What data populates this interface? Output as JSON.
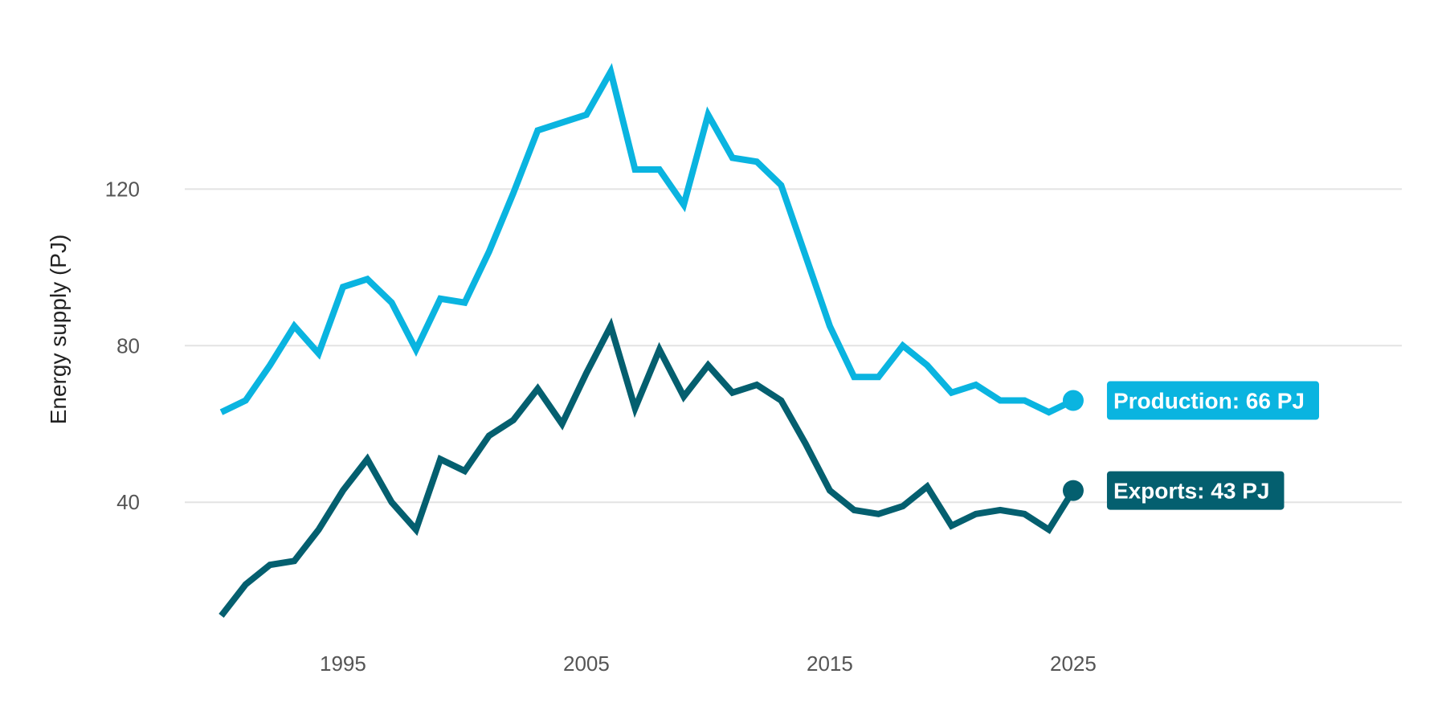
{
  "chart_data": {
    "type": "line",
    "title": "",
    "xlabel": "",
    "ylabel": "Energy supply (PJ)",
    "xlim": [
      1988.5,
      2038.5
    ],
    "ylim": [
      7,
      156
    ],
    "x_ticks": [
      1995,
      2005,
      2015,
      2025
    ],
    "y_ticks": [
      40,
      80,
      120
    ],
    "grid": "horizontal",
    "legend": "end-of-line labels",
    "x": [
      1990,
      1991,
      1992,
      1993,
      1994,
      1995,
      1996,
      1997,
      1998,
      1999,
      2000,
      2001,
      2002,
      2003,
      2004,
      2005,
      2006,
      2007,
      2008,
      2009,
      2010,
      2011,
      2012,
      2013,
      2014,
      2015,
      2016,
      2017,
      2018,
      2019,
      2020,
      2021,
      2022,
      2023,
      2024,
      2025
    ],
    "series": [
      {
        "name": "Production",
        "color": "#0ab4e0",
        "end_label": "Production: 66 PJ",
        "values": [
          63,
          66,
          75,
          85,
          78,
          95,
          97,
          91,
          79,
          92,
          91,
          104,
          119,
          135,
          137,
          139,
          150,
          125,
          125,
          116,
          139,
          128,
          127,
          121,
          103,
          85,
          72,
          72,
          80,
          75,
          68,
          70,
          66,
          66,
          63,
          66
        ]
      },
      {
        "name": "Exports",
        "color": "#045f6f",
        "end_label": "Exports: 43 PJ",
        "values": [
          11,
          19,
          24,
          25,
          33,
          43,
          51,
          40,
          33,
          51,
          48,
          57,
          61,
          69,
          60,
          73,
          85,
          64,
          79,
          67,
          75,
          68,
          70,
          66,
          55,
          43,
          38,
          37,
          39,
          44,
          34,
          37,
          38,
          37,
          33,
          43
        ]
      }
    ]
  }
}
